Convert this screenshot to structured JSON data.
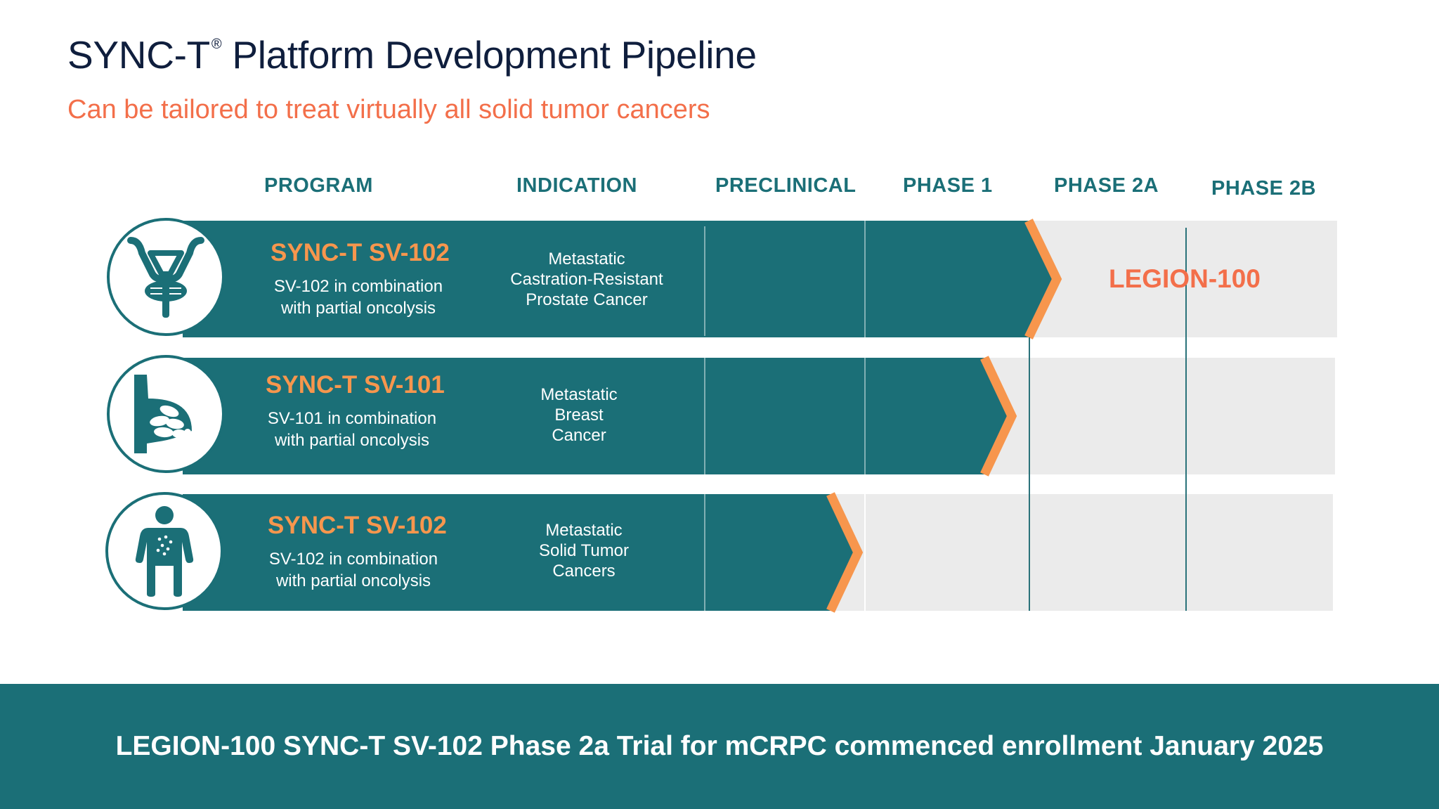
{
  "header": {
    "title": "SYNC-T",
    "title_mark": "®",
    "title_rest": "Platform Development Pipeline",
    "subtitle": "Can be tailored to treat virtually all solid tumor cancers"
  },
  "columns": {
    "program": "PROGRAM",
    "indication": "INDICATION",
    "preclinical": "PRECLINICAL",
    "phase1": "PHASE 1",
    "phase2a": "PHASE 2A",
    "phase2b": "PHASE 2B"
  },
  "rows": [
    {
      "icon": "prostate-icon",
      "name": "SYNC-T SV-102",
      "desc_line1": "SV-102 in combination",
      "desc_line2": "with partial oncolysis",
      "indication_line1": "Metastatic",
      "indication_line2": "Castration-Resistant",
      "indication_line3": "Prostate Cancer",
      "stage": "Phase 2A",
      "trial": "LEGION-100"
    },
    {
      "icon": "breast-icon",
      "name": "SYNC-T SV-101",
      "desc_line1": "SV-101 in combination",
      "desc_line2": "with partial oncolysis",
      "indication_line1": "Metastatic",
      "indication_line2": "Breast",
      "indication_line3": "Cancer",
      "stage": "Phase 1"
    },
    {
      "icon": "human-figure-icon",
      "name": "SYNC-T SV-102",
      "desc_line1": "SV-102 in combination",
      "desc_line2": "with partial oncolysis",
      "indication_line1": "Metastatic",
      "indication_line2": "Solid Tumor",
      "indication_line3": "Cancers",
      "stage": "Preclinical"
    }
  ],
  "footer": {
    "text": "LEGION-100 SYNC-T SV-102 Phase 2a Trial for mCRPC commenced enrollment January 2025"
  },
  "colors": {
    "teal": "#1b6f77",
    "orange": "#f7964d",
    "coral": "#f36f4a",
    "navy": "#0f1e3d",
    "row_grey": "#ebebeb"
  }
}
